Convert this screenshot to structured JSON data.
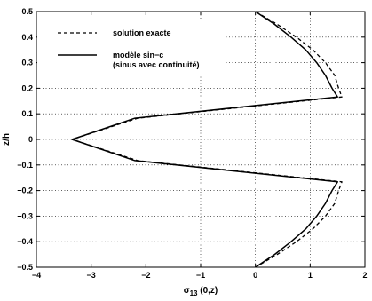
{
  "chart_data": {
    "type": "line",
    "xlim": [
      -4,
      2
    ],
    "ylim": [
      -0.5,
      0.5
    ],
    "xticks": [
      "−4",
      "−3",
      "−2",
      "−1",
      "0",
      "1",
      "2"
    ],
    "yticks": [
      "0.5",
      "0.4",
      "0.3",
      "0.2",
      "0.1",
      "0",
      "−0.1",
      "−0.2",
      "−0.3",
      "−0.4",
      "−0.5"
    ],
    "xlabel_main": "σ",
    "xlabel_sub": "13",
    "xlabel_rest": " (0,z)",
    "ylabel": "z/h",
    "grid": true,
    "legend_position": "top-left",
    "legend": {
      "entry1": "solution exacte",
      "entry2_line1": "modèle sin−c",
      "entry2_line2": "(sinus avec continuité)"
    },
    "series": [
      {
        "name": "solution exacte",
        "style": "dashed",
        "color": "#000000",
        "points": [
          [
            0.0,
            -0.5
          ],
          [
            0.4,
            -0.45
          ],
          [
            0.75,
            -0.4
          ],
          [
            1.05,
            -0.35
          ],
          [
            1.28,
            -0.3
          ],
          [
            1.45,
            -0.25
          ],
          [
            1.52,
            -0.2
          ],
          [
            1.58,
            -0.166
          ],
          [
            -2.15,
            -0.083
          ],
          [
            -3.35,
            0.0
          ],
          [
            -2.15,
            0.083
          ],
          [
            1.58,
            0.166
          ],
          [
            1.52,
            0.2
          ],
          [
            1.45,
            0.25
          ],
          [
            1.28,
            0.3
          ],
          [
            1.05,
            0.35
          ],
          [
            0.75,
            0.4
          ],
          [
            0.4,
            0.45
          ],
          [
            0.0,
            0.5
          ]
        ]
      },
      {
        "name": "modèle sin−c",
        "style": "solid",
        "color": "#000000",
        "points": [
          [
            0.0,
            -0.5
          ],
          [
            0.35,
            -0.45
          ],
          [
            0.65,
            -0.4
          ],
          [
            0.92,
            -0.35
          ],
          [
            1.12,
            -0.3
          ],
          [
            1.28,
            -0.25
          ],
          [
            1.4,
            -0.2
          ],
          [
            1.5,
            -0.166
          ],
          [
            -2.2,
            -0.083
          ],
          [
            -3.35,
            0.0
          ],
          [
            -2.2,
            0.083
          ],
          [
            1.5,
            0.166
          ],
          [
            1.4,
            0.2
          ],
          [
            1.28,
            0.25
          ],
          [
            1.12,
            0.3
          ],
          [
            0.92,
            0.35
          ],
          [
            0.65,
            0.4
          ],
          [
            0.35,
            0.45
          ],
          [
            0.0,
            0.5
          ]
        ]
      }
    ]
  }
}
